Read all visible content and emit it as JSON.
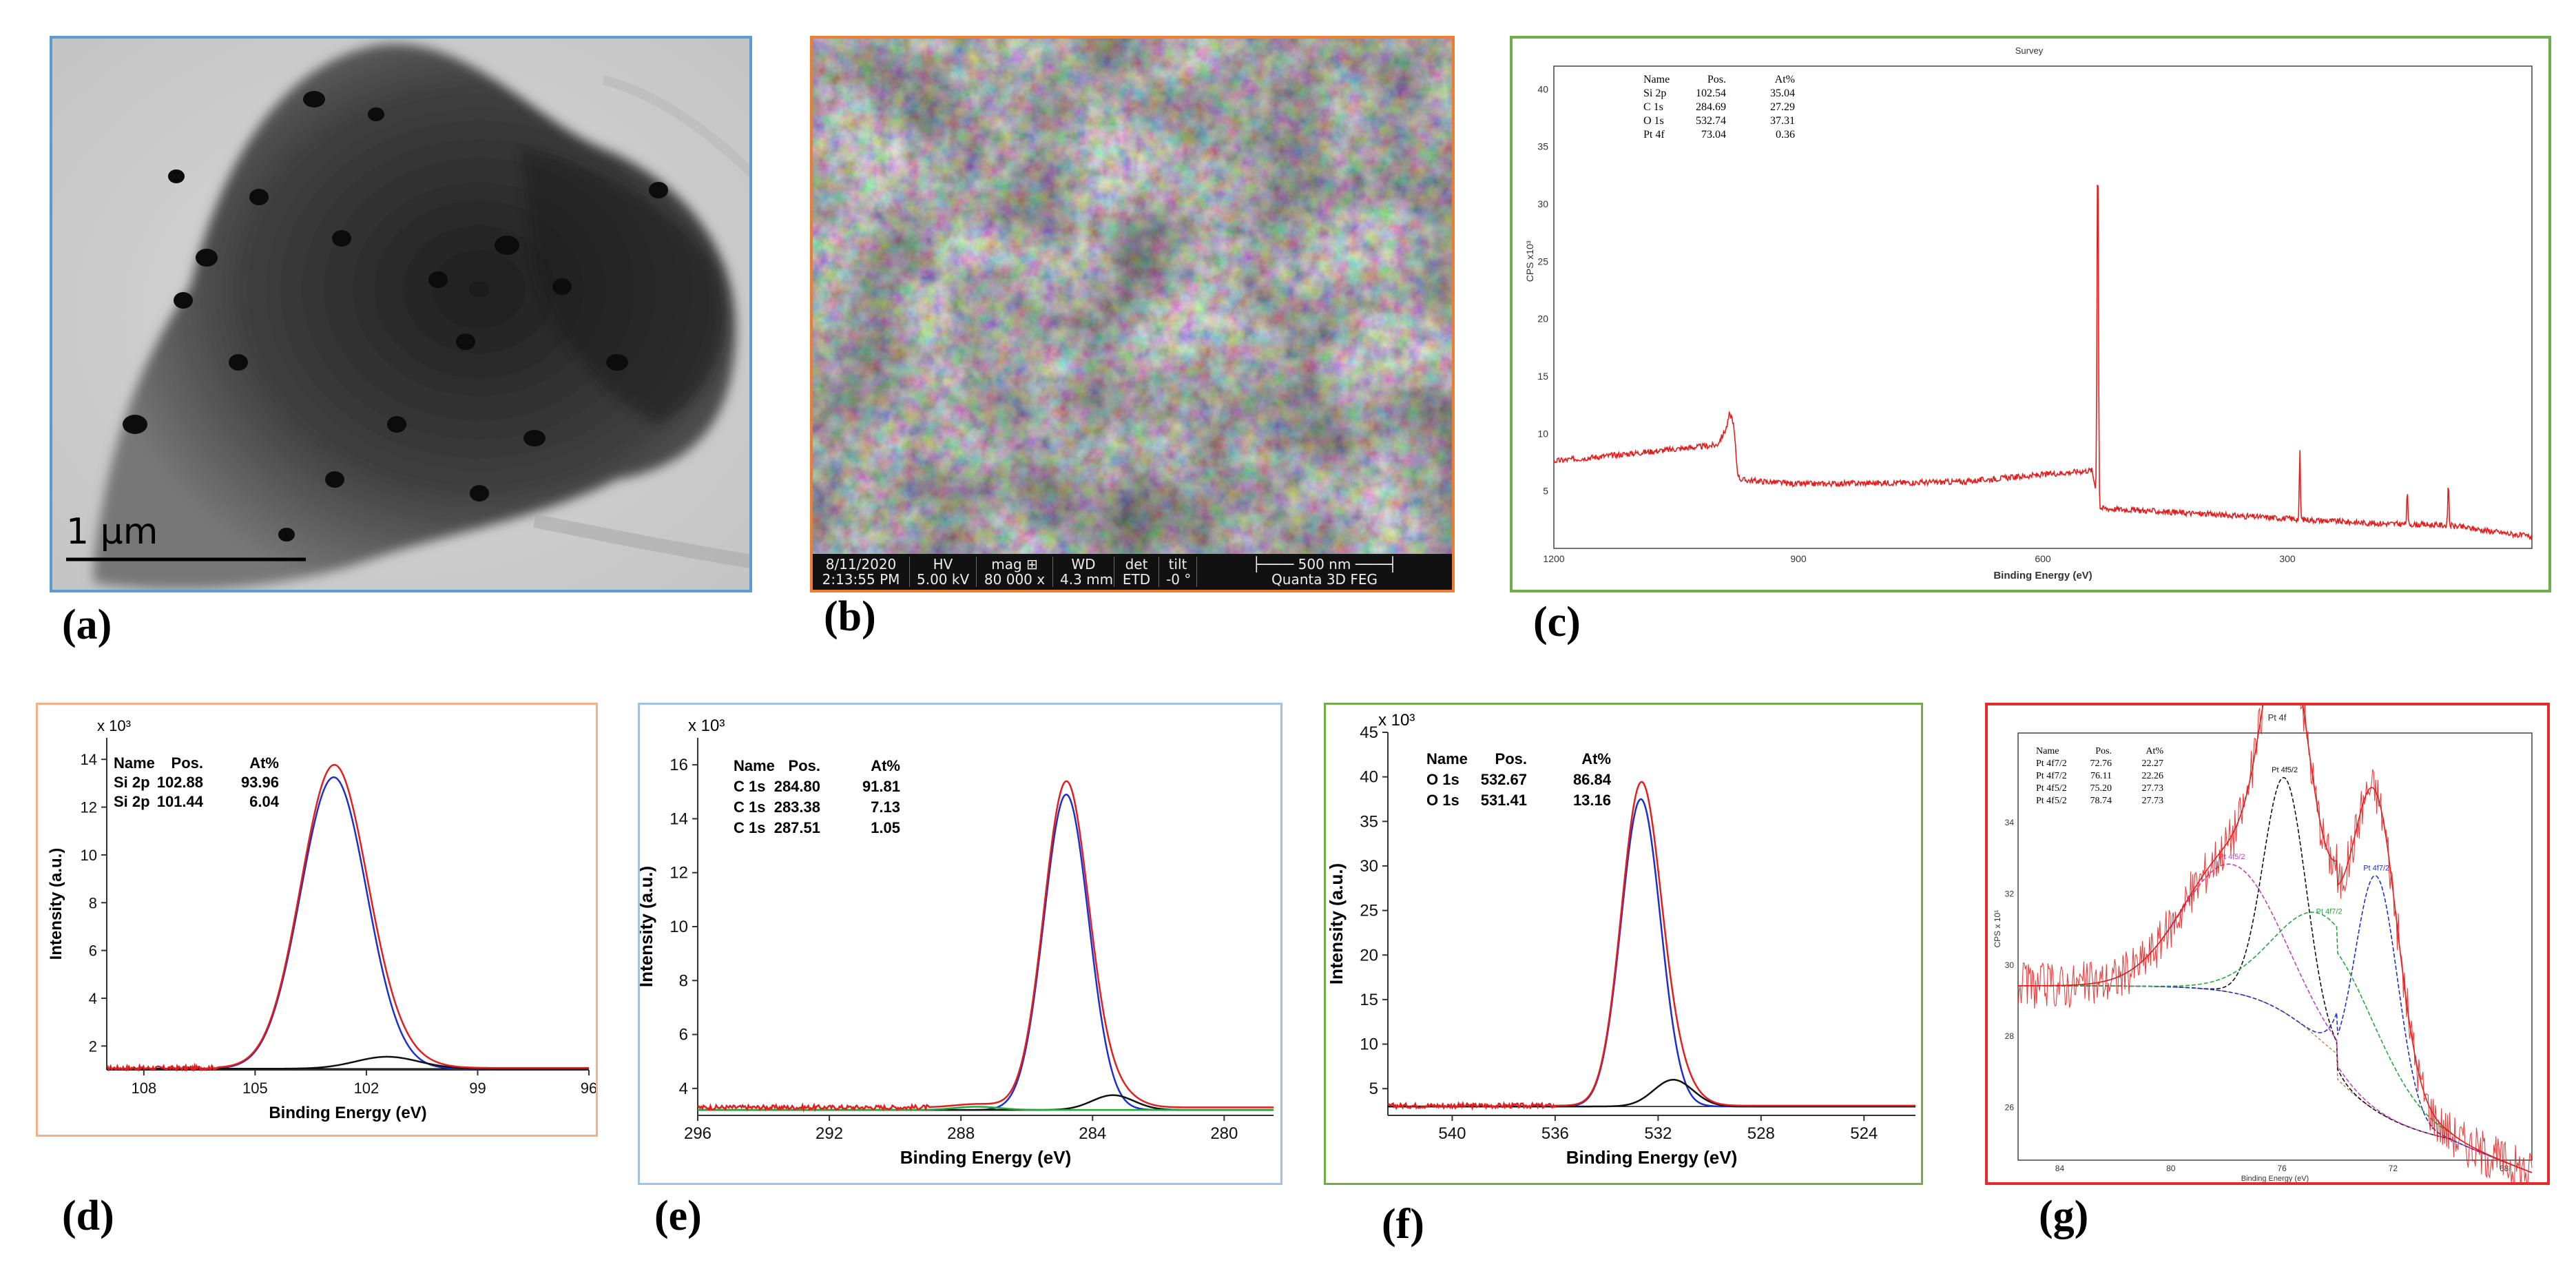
{
  "panel_labels": [
    "(a)",
    "(b)",
    "(c)",
    "(d)",
    "(e)",
    "(f)",
    "(g)"
  ],
  "colors": {
    "tem_border": "#5b9bd5",
    "sem_border": "#ed7d31",
    "c_border": "#70ad47",
    "d_border": "#f4b183",
    "e_border": "#9dc3e6",
    "f_border": "#70ad47",
    "g_border": "#e32b2b",
    "envelope": "#e31e1e",
    "fit_blue": "#1c2fd1",
    "fit_black": "#111111",
    "fit_green": "#1faa3a",
    "fit_magenta": "#c040c0"
  },
  "tem": {
    "scale_bar_label": "1 μm"
  },
  "sem": {
    "bar_cells": [
      {
        "top": "8/11/2020",
        "bottom": "2:13:55 PM"
      },
      {
        "top": "HV",
        "bottom": "5.00 kV"
      },
      {
        "top": "mag ⊞",
        "bottom": "80 000 x"
      },
      {
        "top": "WD",
        "bottom": "4.3 mm"
      },
      {
        "top": "det",
        "bottom": "ETD"
      },
      {
        "top": "tilt",
        "bottom": "-0 °"
      },
      {
        "top": "├──── 500 nm ────┤",
        "bottom": "Quanta 3D FEG"
      }
    ]
  },
  "chart_data": [
    {
      "id": "c",
      "type": "line",
      "title": "Survey",
      "xlabel": "Binding Energy (eV)",
      "ylabel": "CPS x10³",
      "xlim": [
        1200,
        0
      ],
      "ylim": [
        0,
        42
      ],
      "x_ticks": [
        1200,
        900,
        600,
        300
      ],
      "y_ticks": [
        5,
        10,
        15,
        20,
        25,
        30,
        35,
        40
      ],
      "table_header": [
        "Name",
        "Pos.",
        "At%"
      ],
      "table_rows": [
        [
          "Si 2p",
          "102.54",
          "35.04"
        ],
        [
          "C 1s",
          "284.69",
          "27.29"
        ],
        [
          "O 1s",
          "532.74",
          "37.31"
        ],
        [
          "Pt 4f",
          "73.04",
          "0.36"
        ]
      ],
      "series": [
        {
          "peaks": [
            {
              "x": 980,
              "h": 2.5,
              "w": 8
            },
            {
              "x": 532.7,
              "h": 31,
              "w": 2
            },
            {
              "x": 284.7,
              "h": 6,
              "w": 1.5
            },
            {
              "x": 153,
              "h": 3,
              "w": 1.5
            },
            {
              "x": 102.5,
              "h": 4,
              "w": 1.5
            }
          ],
          "background": [
            [
              1200,
              7.6
            ],
            [
              1000,
              9
            ],
            [
              985,
              10.8
            ],
            [
              975,
              6
            ],
            [
              900,
              5.6
            ],
            [
              700,
              5.8
            ],
            [
              540,
              6.8
            ],
            [
              530,
              3.5
            ],
            [
              300,
              2.6
            ],
            [
              200,
              2.2
            ],
            [
              100,
              2.0
            ],
            [
              0,
              1.0
            ]
          ]
        }
      ]
    },
    {
      "id": "d",
      "type": "line",
      "xlabel": "Binding Energy (eV)",
      "ylabel": "Intensity (a.u.)",
      "scale_label": "x 10³",
      "xlim": [
        109,
        96
      ],
      "ylim": [
        1,
        14.9
      ],
      "x_ticks": [
        108,
        105,
        102,
        99,
        96
      ],
      "y_ticks": [
        2,
        4,
        6,
        8,
        10,
        12,
        14
      ],
      "table_header": [
        "Name",
        "Pos.",
        "At%"
      ],
      "table_rows": [
        [
          "Si 2p",
          "102.88",
          "93.96"
        ],
        [
          "Si 2p",
          "101.44",
          "6.04"
        ]
      ],
      "baseline": 1.05,
      "components": [
        {
          "name": "Si 2p",
          "center": 102.88,
          "height": 12.2,
          "fwhm": 2.1,
          "color": "blue"
        },
        {
          "name": "Si 2p",
          "center": 101.44,
          "height": 0.5,
          "fwhm": 2.0,
          "color": "black"
        }
      ],
      "noise_region": [
        109,
        106
      ]
    },
    {
      "id": "e",
      "type": "line",
      "xlabel": "Binding Energy (eV)",
      "ylabel": "Intensity (a.u.)",
      "scale_label": "x 10³",
      "xlim": [
        296,
        278.5
      ],
      "ylim": [
        3,
        17
      ],
      "x_ticks": [
        296,
        292,
        288,
        284,
        280
      ],
      "y_ticks": [
        4,
        6,
        8,
        10,
        12,
        14,
        16
      ],
      "table_header": [
        "Name",
        "Pos.",
        "At%"
      ],
      "table_rows": [
        [
          "C 1s",
          "284.80",
          "91.81"
        ],
        [
          "C 1s",
          "283.38",
          "7.13"
        ],
        [
          "C 1s",
          "287.51",
          "1.05"
        ]
      ],
      "baseline": 3.2,
      "components": [
        {
          "name": "C 1s",
          "center": 284.8,
          "height": 11.7,
          "fwhm": 1.6,
          "color": "blue"
        },
        {
          "name": "C 1s",
          "center": 283.38,
          "height": 0.55,
          "fwhm": 1.5,
          "color": "black"
        },
        {
          "name": "C 1s",
          "center": 287.51,
          "height": 0.12,
          "fwhm": 1.6,
          "color": "green"
        }
      ],
      "noise_region": [
        296,
        289
      ]
    },
    {
      "id": "f",
      "type": "line",
      "xlabel": "Binding Energy (eV)",
      "ylabel": "Intensity (a.u.)",
      "scale_label": "x 10³",
      "xlim": [
        542.5,
        522
      ],
      "ylim": [
        2,
        45
      ],
      "x_ticks": [
        540,
        536,
        532,
        528,
        524
      ],
      "y_ticks": [
        5,
        10,
        15,
        20,
        25,
        30,
        35,
        40,
        45
      ],
      "table_header": [
        "Name",
        "Pos.",
        "At%"
      ],
      "table_rows": [
        [
          "O 1s",
          "532.67",
          "86.84"
        ],
        [
          "O 1s",
          "531.41",
          "13.16"
        ]
      ],
      "baseline": 3.0,
      "components": [
        {
          "name": "O 1s",
          "center": 532.67,
          "height": 34.5,
          "fwhm": 1.8,
          "color": "blue"
        },
        {
          "name": "O 1s",
          "center": 531.41,
          "height": 3.0,
          "fwhm": 1.8,
          "color": "black"
        }
      ],
      "noise_region": [
        542.5,
        536
      ]
    },
    {
      "id": "g",
      "type": "line",
      "title": "Pt 4f",
      "xlabel": "Binding Energy (eV)",
      "ylabel": "CPS x 10¹",
      "xlim": [
        65,
        67.5
      ],
      "ylim": [
        24.5,
        36.5
      ],
      "x_ticks": [
        84,
        80,
        76,
        72,
        68
      ],
      "y_ticks": [
        26,
        28,
        30,
        32,
        34
      ],
      "table_header": [
        "Name",
        "Pos.",
        "At%"
      ],
      "table_rows": [
        [
          "Pt 4f7/2",
          "72.76",
          "22.27"
        ],
        [
          "Pt 4f7/2",
          "76.11",
          "22.26"
        ],
        [
          "Pt 4f5/2",
          "75.20",
          "27.73"
        ],
        [
          "Pt 4f5/2",
          "78.74",
          "27.73"
        ]
      ],
      "components": [
        {
          "name": "Pt 4f5/2",
          "center": 75.9,
          "height": 6.6,
          "fwhm": 1.8,
          "color": "black"
        },
        {
          "name": "Pt 4f7/2",
          "center": 72.6,
          "height": 6.6,
          "fwhm": 1.8,
          "color": "blue"
        },
        {
          "name": "Pt 4f5/2",
          "center": 77.8,
          "height": 3.6,
          "fwhm": 4.2,
          "color": "magenta"
        },
        {
          "name": "Pt 4f7/2",
          "center": 74.3,
          "height": 3.6,
          "fwhm": 4.2,
          "color": "green"
        }
      ],
      "peak_labels": [
        "Pt 4f5/2",
        "Pt 4f7/2",
        "Pt 4f5/2",
        "Pt 4f7/2"
      ]
    }
  ]
}
